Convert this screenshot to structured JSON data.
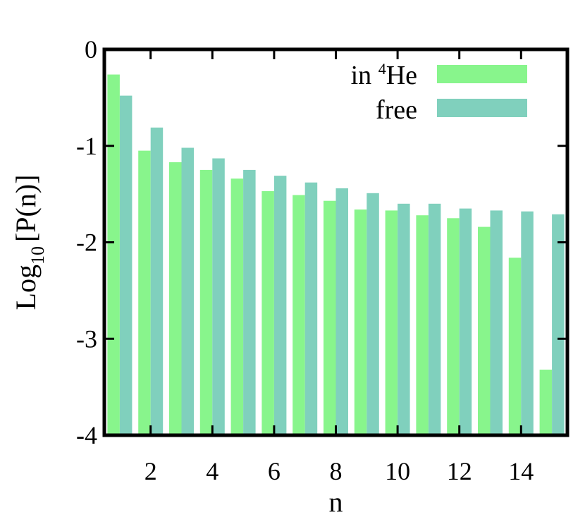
{
  "chart_data": {
    "type": "bar",
    "x": [
      1,
      2,
      3,
      4,
      5,
      6,
      7,
      8,
      9,
      10,
      11,
      12,
      13,
      14,
      15
    ],
    "series": [
      {
        "name": "in He",
        "name_superscript": "4",
        "name_prefix": "in ",
        "name_suffix": "He",
        "color": "#88f58c",
        "values": [
          -0.26,
          -1.05,
          -1.17,
          -1.25,
          -1.34,
          -1.47,
          -1.51,
          -1.57,
          -1.66,
          -1.67,
          -1.72,
          -1.75,
          -1.84,
          -2.16,
          -3.32
        ]
      },
      {
        "name": "free",
        "color": "#80d0bd",
        "values": [
          -0.48,
          -0.81,
          -1.02,
          -1.13,
          -1.25,
          -1.31,
          -1.38,
          -1.44,
          -1.49,
          -1.6,
          -1.6,
          -1.65,
          -1.67,
          -1.68,
          -1.71
        ]
      }
    ],
    "xlabel": "n",
    "ylabel_main": "Log",
    "ylabel_sub": "10",
    "ylabel_rest": "[P(n)]",
    "ylim": [
      -4,
      0
    ],
    "xlim": [
      0.5,
      15.5
    ],
    "yticks": [
      "0",
      "-1",
      "-2",
      "-3",
      "-4"
    ],
    "ytick_values": [
      0,
      -1,
      -2,
      -3,
      -4
    ],
    "xticks": [
      "2",
      "4",
      "6",
      "8",
      "10",
      "12",
      "14"
    ],
    "xtick_values": [
      2,
      4,
      6,
      8,
      10,
      12,
      14
    ],
    "legend_position": "top-right",
    "grid": false
  }
}
